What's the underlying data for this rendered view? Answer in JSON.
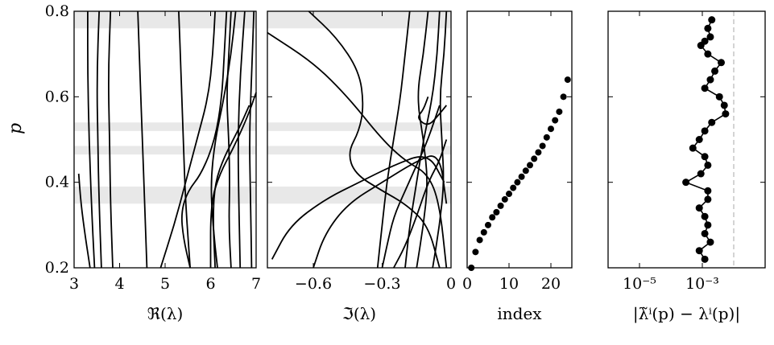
{
  "chart_data": [
    {
      "type": "line",
      "ylabel": "p",
      "xlabel": "ℜ(λ)",
      "xlim": [
        3,
        7
      ],
      "ylim": [
        0.2,
        0.8
      ],
      "xticks": [
        "3",
        "4",
        "5",
        "6",
        "7"
      ],
      "yticks": [
        "0.2",
        "0.4",
        "0.6",
        "0.8"
      ],
      "bands": [
        [
          0.35,
          0.39
        ],
        [
          0.465,
          0.485
        ],
        [
          0.52,
          0.54
        ],
        [
          0.76,
          0.8
        ]
      ],
      "series": [
        {
          "x": [
            3.1,
            3.15,
            3.25,
            3.35
          ],
          "y": [
            0.42,
            0.35,
            0.27,
            0.2
          ]
        },
        {
          "x": [
            3.3,
            3.3,
            3.33,
            3.38,
            3.45
          ],
          "y": [
            0.8,
            0.65,
            0.5,
            0.35,
            0.2
          ]
        },
        {
          "x": [
            3.55,
            3.5,
            3.52,
            3.55,
            3.6
          ],
          "y": [
            0.8,
            0.65,
            0.5,
            0.35,
            0.2
          ]
        },
        {
          "x": [
            3.8,
            3.75,
            3.78,
            3.8,
            3.85
          ],
          "y": [
            0.8,
            0.65,
            0.5,
            0.35,
            0.2
          ]
        },
        {
          "x": [
            4.4,
            4.45,
            4.5,
            4.55,
            4.6
          ],
          "y": [
            0.8,
            0.65,
            0.5,
            0.35,
            0.2
          ]
        },
        {
          "x": [
            5.3,
            5.35,
            5.4,
            5.45,
            5.55
          ],
          "y": [
            0.8,
            0.65,
            0.5,
            0.35,
            0.2
          ]
        },
        {
          "x": [
            6.1,
            6.05,
            5.95,
            5.7,
            5.45,
            5.2,
            4.9
          ],
          "y": [
            0.8,
            0.7,
            0.6,
            0.5,
            0.4,
            0.3,
            0.2
          ]
        },
        {
          "x": [
            6.35,
            6.3,
            6.25,
            6.1,
            5.8,
            5.5,
            5.35,
            5.4,
            5.55
          ],
          "y": [
            0.8,
            0.7,
            0.6,
            0.5,
            0.42,
            0.38,
            0.33,
            0.27,
            0.2
          ]
        },
        {
          "x": [
            6.45,
            6.4,
            6.35,
            6.4,
            6.42,
            6.4,
            6.45
          ],
          "y": [
            0.8,
            0.7,
            0.6,
            0.5,
            0.4,
            0.3,
            0.2
          ]
        },
        {
          "x": [
            6.55,
            6.45,
            6.3,
            6.1,
            6.0,
            6.05,
            6.15
          ],
          "y": [
            0.8,
            0.7,
            0.6,
            0.5,
            0.4,
            0.3,
            0.2
          ]
        },
        {
          "x": [
            6.75,
            6.65,
            6.6,
            6.62,
            6.65
          ],
          "y": [
            0.8,
            0.65,
            0.5,
            0.35,
            0.2
          ]
        },
        {
          "x": [
            6.95,
            6.9,
            6.85,
            6.88,
            6.9
          ],
          "y": [
            0.8,
            0.65,
            0.5,
            0.35,
            0.2
          ]
        },
        {
          "x": [
            7.0,
            6.8,
            6.5,
            6.2,
            6.0,
            6.0
          ],
          "y": [
            0.61,
            0.55,
            0.48,
            0.42,
            0.35,
            0.2
          ]
        },
        {
          "x": [
            6.85,
            6.6,
            6.3,
            6.1,
            6.05,
            6.1
          ],
          "y": [
            0.58,
            0.52,
            0.46,
            0.4,
            0.32,
            0.2
          ]
        }
      ]
    },
    {
      "type": "line",
      "xlabel": "ℑ(λ)",
      "xlim": [
        -0.8,
        0
      ],
      "ylim": [
        0.2,
        0.8
      ],
      "xticks": [
        "−0.6",
        "−0.3",
        "0"
      ],
      "bands": [
        [
          0.35,
          0.39
        ],
        [
          0.465,
          0.485
        ],
        [
          0.52,
          0.54
        ],
        [
          0.76,
          0.8
        ]
      ],
      "series": [
        {
          "x": [
            -0.62,
            -0.5,
            -0.4,
            -0.38,
            -0.4,
            -0.45,
            -0.42,
            -0.3,
            -0.2,
            -0.1,
            -0.05
          ],
          "y": [
            0.8,
            0.74,
            0.66,
            0.58,
            0.52,
            0.47,
            0.42,
            0.38,
            0.35,
            0.3,
            0.2
          ]
        },
        {
          "x": [
            -0.8,
            -0.6,
            -0.45,
            -0.3,
            -0.2,
            -0.1,
            -0.05,
            -0.02
          ],
          "y": [
            0.75,
            0.68,
            0.6,
            0.5,
            0.45,
            0.42,
            0.35,
            0.2
          ]
        },
        {
          "x": [
            -0.18,
            -0.2,
            -0.22,
            -0.25,
            -0.28,
            -0.3,
            -0.32
          ],
          "y": [
            0.8,
            0.7,
            0.6,
            0.5,
            0.4,
            0.3,
            0.2
          ]
        },
        {
          "x": [
            -0.1,
            -0.12,
            -0.15,
            -0.12,
            -0.1,
            -0.12,
            -0.15
          ],
          "y": [
            0.8,
            0.7,
            0.6,
            0.5,
            0.4,
            0.3,
            0.2
          ]
        },
        {
          "x": [
            -0.05,
            -0.06,
            -0.08,
            -0.12,
            -0.15,
            -0.18,
            -0.2
          ],
          "y": [
            0.8,
            0.7,
            0.6,
            0.5,
            0.4,
            0.3,
            0.2
          ]
        },
        {
          "x": [
            -0.02,
            -0.03,
            -0.05,
            -0.04,
            -0.03,
            -0.05,
            -0.08
          ],
          "y": [
            0.8,
            0.7,
            0.6,
            0.5,
            0.4,
            0.3,
            0.2
          ]
        },
        {
          "x": [
            -0.25,
            -0.2,
            -0.15,
            -0.1,
            -0.05,
            -0.02
          ],
          "y": [
            0.2,
            0.25,
            0.32,
            0.4,
            0.45,
            0.5
          ]
        },
        {
          "x": [
            -0.6,
            -0.55,
            -0.45,
            -0.3,
            -0.15,
            -0.05,
            -0.02
          ],
          "y": [
            0.2,
            0.28,
            0.35,
            0.4,
            0.45,
            0.47,
            0.35
          ]
        },
        {
          "x": [
            -0.78,
            -0.7,
            -0.55,
            -0.4,
            -0.25,
            -0.1,
            -0.03
          ],
          "y": [
            0.22,
            0.3,
            0.36,
            0.4,
            0.44,
            0.47,
            0.4
          ]
        },
        {
          "x": [
            -0.1,
            -0.12,
            -0.15,
            -0.1,
            -0.05,
            -0.02
          ],
          "y": [
            0.6,
            0.57,
            0.55,
            0.53,
            0.56,
            0.58
          ]
        },
        {
          "x": [
            -0.3,
            -0.28,
            -0.25,
            -0.2,
            -0.15,
            -0.1,
            -0.05
          ],
          "y": [
            0.2,
            0.25,
            0.32,
            0.38,
            0.44,
            0.5,
            0.58
          ]
        }
      ]
    },
    {
      "type": "scatter",
      "xlabel": "index",
      "xlim": [
        0,
        25
      ],
      "ylim": [
        0.2,
        0.8
      ],
      "xticks": [
        "0",
        "10",
        "20"
      ],
      "x": [
        1,
        2,
        3,
        4,
        5,
        6,
        7,
        8,
        9,
        10,
        11,
        12,
        13,
        14,
        15,
        16,
        17,
        18,
        19,
        20,
        21,
        22,
        23,
        24
      ],
      "y": [
        0.2,
        0.237,
        0.265,
        0.283,
        0.3,
        0.318,
        0.33,
        0.345,
        0.36,
        0.373,
        0.387,
        0.4,
        0.413,
        0.427,
        0.44,
        0.455,
        0.47,
        0.485,
        0.505,
        0.525,
        0.545,
        0.565,
        0.6,
        0.64
      ]
    },
    {
      "type": "scatter",
      "xlabel": "|λ̃ⁱ(p) − λⁱ(p)|",
      "xscale": "log",
      "xlim": [
        1e-06,
        0.1
      ],
      "ylim": [
        0.2,
        0.8
      ],
      "xticks": [
        "10⁻⁵",
        "10⁻³"
      ],
      "dashed_x": 0.01,
      "series": [
        {
          "name": "",
          "x": [
            0.002,
            0.0015,
            0.0018,
            0.0012,
            0.0009,
            0.0015,
            0.004,
            0.0025,
            0.0018,
            0.0012,
            0.0035,
            0.005,
            0.0055,
            0.002,
            0.0012,
            0.0008,
            0.0005,
            0.0012,
            0.0015,
            0.0009,
            0.0003,
            0.0015,
            0.0015,
            0.0008,
            0.0012,
            0.0015,
            0.0012,
            0.0018,
            0.0008,
            0.0012
          ],
          "y": [
            0.78,
            0.76,
            0.74,
            0.73,
            0.72,
            0.7,
            0.68,
            0.66,
            0.64,
            0.62,
            0.6,
            0.58,
            0.56,
            0.54,
            0.52,
            0.5,
            0.48,
            0.46,
            0.44,
            0.42,
            0.4,
            0.38,
            0.36,
            0.34,
            0.32,
            0.3,
            0.28,
            0.26,
            0.24,
            0.22
          ]
        }
      ]
    }
  ]
}
